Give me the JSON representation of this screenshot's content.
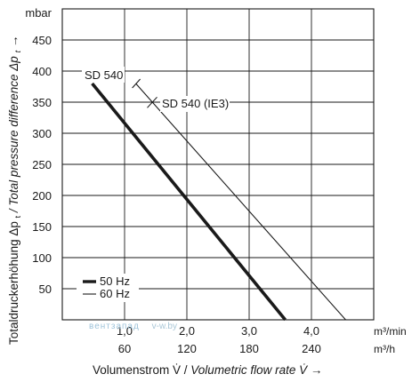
{
  "chart_data": {
    "type": "line",
    "y_unit": "mbar",
    "ylim": [
      0,
      500
    ],
    "y_ticks": [
      50,
      100,
      150,
      200,
      250,
      300,
      350,
      400,
      450
    ],
    "x_primary": {
      "unit": "m³/min",
      "lim": [
        0,
        5.0
      ],
      "ticks": [
        1.0,
        2.0,
        3.0,
        4.0
      ],
      "tick_labels": [
        "1,0",
        "2,0",
        "3,0",
        "4,0"
      ]
    },
    "x_secondary": {
      "unit": "m³/h",
      "ticks": [
        60,
        120,
        180,
        240
      ],
      "tick_labels": [
        "60",
        "120",
        "180",
        "240"
      ]
    },
    "ylabel": "Totaldruckerhöhung Δpt / Total pressure difference Δpt →",
    "ylabel_de": "Totaldruckerhöhung Δp",
    "ylabel_en": " / Total pressure difference Δp",
    "ylabel_sub": "t",
    "ylabel_arrow": " →",
    "xlabel": "Volumenstrom V̇ / Volumetric flow rate V̇ →",
    "xlabel_de": "Volumenstrom V̇ / ",
    "xlabel_en": "Volumetric flow rate V̇",
    "xlabel_arrow": " →",
    "grid": true,
    "legend_position": "bottom-left",
    "legend": [
      {
        "label": "50 Hz",
        "style": "thick"
      },
      {
        "label": "60 Hz",
        "style": "thin"
      }
    ],
    "series": [
      {
        "name": "SD 540",
        "freq": "50 Hz",
        "x": [
          0.48,
          3.58
        ],
        "y": [
          380,
          0
        ]
      },
      {
        "name": "SD 540 (IE3)",
        "freq": "60 Hz",
        "x": [
          1.18,
          4.55
        ],
        "y": [
          380,
          0
        ]
      }
    ],
    "annotations": [
      {
        "text": "SD 540",
        "series": 0
      },
      {
        "text": "SD 540 (IE3)",
        "series": 1
      }
    ]
  },
  "watermark": {
    "text1": "вентзапад",
    "text2": "v-w.by"
  }
}
